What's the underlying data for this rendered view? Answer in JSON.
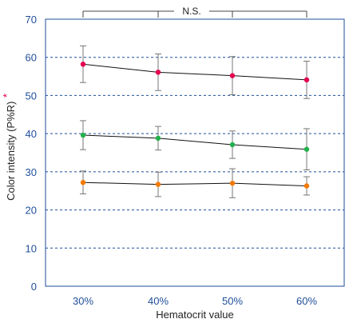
{
  "chart_data": {
    "type": "line",
    "categories": [
      "30%",
      "40%",
      "50%",
      "60%"
    ],
    "xlabel": "Hematocrit value",
    "ylabel": "Color intensity (P%R)",
    "ylabel_mark": "*",
    "ylim": [
      0,
      70
    ],
    "yticks": [
      0,
      10,
      20,
      30,
      40,
      50,
      60,
      70
    ],
    "grid": "dashed horizontal",
    "significance_label": "N.S.",
    "series": [
      {
        "color": "#e4004f",
        "values": [
          58.2,
          56.1,
          55.2,
          54.1
        ],
        "error": [
          4.8,
          4.8,
          5.0,
          4.9
        ]
      },
      {
        "color": "#22b14c",
        "values": [
          39.6,
          38.8,
          37.1,
          35.9
        ],
        "error": [
          3.8,
          3.1,
          3.6,
          5.4
        ]
      },
      {
        "color": "#f57a00",
        "values": [
          27.2,
          26.7,
          27.0,
          26.3
        ],
        "error": [
          3.0,
          3.2,
          3.8,
          2.4
        ]
      }
    ]
  }
}
